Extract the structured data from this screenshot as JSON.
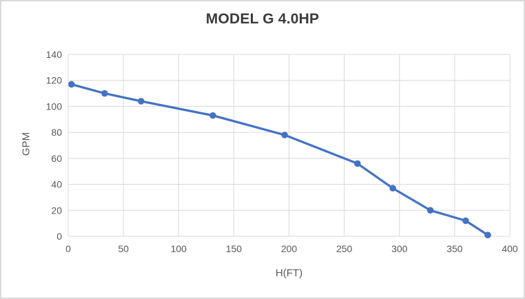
{
  "chart_data": {
    "type": "line",
    "title": "MODEL G 4.0HP",
    "xlabel": "H(FT)",
    "ylabel": "GPM",
    "x": [
      3,
      33,
      66,
      131,
      196,
      262,
      294,
      328,
      360,
      380
    ],
    "y": [
      117,
      110,
      104,
      93,
      78,
      56,
      37,
      20,
      12,
      1
    ],
    "xlim": [
      0,
      400
    ],
    "ylim": [
      0,
      140
    ],
    "x_ticks": [
      0,
      50,
      100,
      150,
      200,
      250,
      300,
      350,
      400
    ],
    "y_ticks": [
      0,
      20,
      40,
      60,
      80,
      100,
      120,
      140
    ],
    "grid": true,
    "legend": "none",
    "line_color": "#4472C4",
    "marker": "circle",
    "gridline_color": "#D9D9D9",
    "tick_label_color": "#595959",
    "title_color": "#3A3A3A"
  }
}
